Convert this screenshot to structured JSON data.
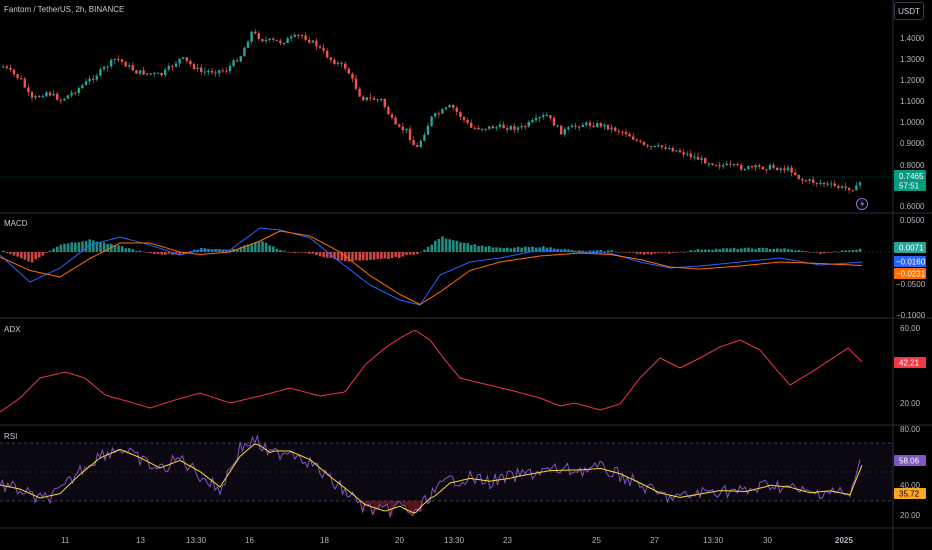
{
  "header": {
    "title": "Fantom / TetherUS, 2h, BINANCE",
    "currency_button": "USDT"
  },
  "price_pane": {
    "y_ticks": [
      "1.4000",
      "1.3000",
      "1.2000",
      "1.1000",
      "1.0000",
      "0.9000",
      "0.8000",
      "0.6000"
    ],
    "last_price": "0.7465",
    "countdown": "57:51",
    "colors": {
      "up": "#26a69a",
      "down": "#ef5350",
      "last": "#089981"
    }
  },
  "macd_pane": {
    "label": "MACD",
    "y_ticks": [
      "0.0500",
      "−0.0500",
      "−0.1000"
    ],
    "histogram_value": "0.0071",
    "macd_value": "−0.0160",
    "signal_value": "−0.0231",
    "colors": {
      "macd": "#2962ff",
      "signal": "#ff6d00"
    }
  },
  "adx_pane": {
    "label": "ADX",
    "y_ticks": [
      "60.00",
      "20.00"
    ],
    "value": "42.21",
    "color": "#f23645"
  },
  "rsi_pane": {
    "label": "RSI",
    "y_ticks": [
      "80.00",
      "40.00",
      "20.00"
    ],
    "rsi_value": "58.06",
    "ma_value": "35.72",
    "colors": {
      "rsi": "#7e57c2",
      "ma": "#fdd835"
    }
  },
  "time_axis": {
    "labels": [
      "11",
      "13",
      "13:30",
      "16",
      "18",
      "20",
      "13:30",
      "23",
      "25",
      "27",
      "13:30",
      "30",
      "2025"
    ]
  }
}
